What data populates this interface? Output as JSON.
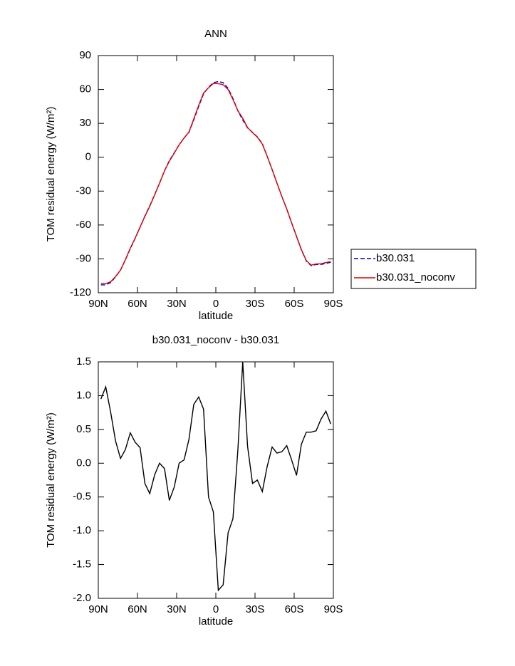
{
  "chart_data": [
    {
      "type": "line",
      "title": "ANN",
      "x_label": "latitude",
      "y_label": "TOM residual energy (W/m²)",
      "x": [
        88.0,
        84.3,
        80.5,
        76.8,
        73.0,
        69.3,
        65.5,
        61.8,
        58.0,
        54.3,
        50.6,
        46.8,
        43.1,
        39.3,
        35.6,
        31.8,
        28.1,
        24.3,
        20.6,
        16.9,
        13.1,
        9.4,
        5.6,
        1.9,
        -1.9,
        -5.6,
        -9.4,
        -13.1,
        -16.9,
        -20.6,
        -24.3,
        -28.1,
        -31.8,
        -35.6,
        -39.3,
        -43.1,
        -46.8,
        -50.6,
        -54.3,
        -58.0,
        -61.8,
        -65.5,
        -69.3,
        -73.0,
        -76.8,
        -80.5,
        -84.3,
        -88.0
      ],
      "series": [
        {
          "name": "b30.031",
          "color": "#0000cc",
          "linestyle": "dashed",
          "values": [
            -113,
            -113,
            -111,
            -106,
            -100,
            -91,
            -81,
            -72,
            -62,
            -52,
            -43,
            -33,
            -23,
            -12,
            -3,
            4,
            11,
            17,
            22,
            33,
            45,
            56,
            62,
            66,
            67,
            66,
            61,
            52,
            41,
            33,
            26,
            22,
            18,
            12,
            1,
            -11,
            -23,
            -35,
            -46,
            -58,
            -70,
            -82,
            -92,
            -96,
            -95,
            -95,
            -94,
            -93
          ]
        },
        {
          "name": "b30.031_noconv",
          "color": "#dd0000",
          "linestyle": "solid",
          "values": [
            -112.05,
            -111.87,
            -110.25,
            -105.67,
            -99.93,
            -90.8,
            -80.55,
            -71.69,
            -61.77,
            -52.3,
            -43.45,
            -33.17,
            -23,
            -12.08,
            -3.55,
            3.65,
            11,
            17.05,
            22.35,
            33.87,
            45.98,
            56.8,
            61.5,
            65.28,
            65.12,
            64.2,
            59.97,
            51.18,
            41.2,
            34.5,
            26.25,
            21.7,
            17.75,
            11.58,
            0.95,
            -10.76,
            -22.85,
            -34.83,
            -45.74,
            -57.95,
            -70.18,
            -81.72,
            -91.54,
            -95.54,
            -94.52,
            -94.35,
            -93.23,
            -92.42
          ]
        }
      ],
      "xlim": [
        90,
        -90
      ],
      "xticks": [
        {
          "value": 90,
          "label": "90N"
        },
        {
          "value": 60,
          "label": "60N"
        },
        {
          "value": 30,
          "label": "30N"
        },
        0,
        {
          "value": -30,
          "label": "30S"
        },
        {
          "value": -60,
          "label": "60S"
        },
        {
          "value": -90,
          "label": "90S"
        }
      ],
      "ylim": [
        -120,
        90
      ],
      "yticks": [
        -120,
        -90,
        -60,
        -30,
        0,
        30,
        60,
        90
      ],
      "legend": "right"
    },
    {
      "type": "line",
      "title": "b30.031_noconv - b30.031",
      "x_label": "latitude",
      "y_label": "TOM residual energy (W/m²)",
      "x": [
        88.0,
        84.3,
        80.5,
        76.8,
        73.0,
        69.3,
        65.5,
        61.8,
        58.0,
        54.3,
        50.6,
        46.8,
        43.1,
        39.3,
        35.6,
        31.8,
        28.1,
        24.3,
        20.6,
        16.9,
        13.1,
        9.4,
        5.6,
        1.9,
        -1.9,
        -5.6,
        -9.4,
        -13.1,
        -16.9,
        -20.6,
        -24.3,
        -28.1,
        -31.8,
        -35.6,
        -39.3,
        -43.1,
        -46.8,
        -50.6,
        -54.3,
        -58.0,
        -61.8,
        -65.5,
        -69.3,
        -73.0,
        -76.8,
        -80.5,
        -84.3,
        -88.0
      ],
      "color": "#000000",
      "values": [
        0.95,
        1.13,
        0.75,
        0.33,
        0.07,
        0.2,
        0.45,
        0.31,
        0.23,
        -0.3,
        -0.45,
        -0.17,
        0.0,
        -0.08,
        -0.55,
        -0.35,
        0.0,
        0.05,
        0.35,
        0.87,
        0.98,
        0.8,
        -0.5,
        -0.72,
        -1.88,
        -1.8,
        -1.03,
        -0.82,
        0.2,
        1.5,
        0.25,
        -0.3,
        -0.25,
        -0.42,
        -0.05,
        0.24,
        0.15,
        0.17,
        0.26,
        0.05,
        -0.18,
        0.28,
        0.46,
        0.46,
        0.48,
        0.65,
        0.77,
        0.58
      ],
      "xlim": [
        90,
        -90
      ],
      "xticks": [
        {
          "value": 90,
          "label": "90N"
        },
        {
          "value": 60,
          "label": "60N"
        },
        {
          "value": 30,
          "label": "30N"
        },
        0,
        {
          "value": -30,
          "label": "30S"
        },
        {
          "value": -60,
          "label": "60S"
        },
        {
          "value": -90,
          "label": "90S"
        }
      ],
      "ylim": [
        -2.0,
        1.5
      ],
      "yticks": [
        {
          "value": -2,
          "label": "-2.0"
        },
        -1.5,
        {
          "value": -1,
          "label": "-1.0"
        },
        -0.5,
        {
          "value": 0,
          "label": "0.0"
        },
        0.5,
        {
          "value": 1,
          "label": "1.0"
        },
        1.5
      ]
    }
  ]
}
